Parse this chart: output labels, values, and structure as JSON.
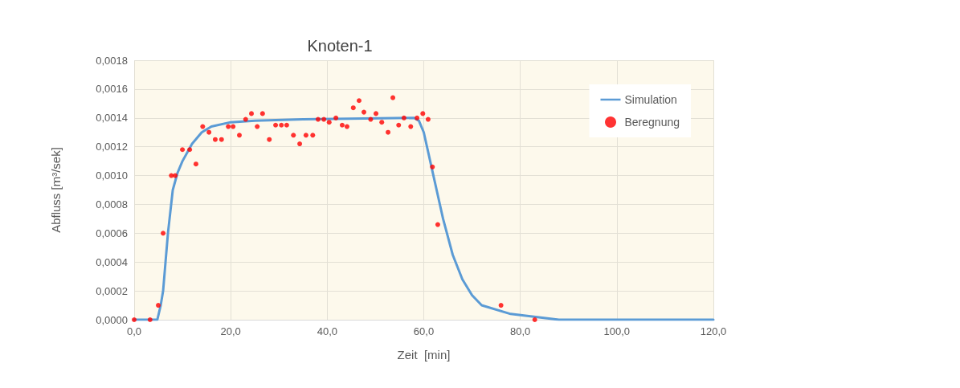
{
  "chart_data": {
    "type": "scatter",
    "title": "Knoten-1",
    "xlabel": "Zeit  [min]",
    "ylabel": "Abfluss [m³/sek]",
    "xlim": [
      0,
      120
    ],
    "xticks": [
      {
        "value": 0,
        "label": "0,0"
      },
      {
        "value": 20,
        "label": "20,0"
      },
      {
        "value": 40,
        "label": "40,0"
      },
      {
        "value": 60,
        "label": "60,0"
      },
      {
        "value": 80,
        "label": "80,0"
      },
      {
        "value": 100,
        "label": "100,0"
      },
      {
        "value": 120,
        "label": "120,0"
      }
    ],
    "ylim": [
      0,
      0.0018
    ],
    "yticks": [
      {
        "value": 0,
        "label": "0,0000"
      },
      {
        "value": 0.0002,
        "label": "0,0002"
      },
      {
        "value": 0.0004,
        "label": "0,0004"
      },
      {
        "value": 0.0006,
        "label": "0,0006"
      },
      {
        "value": 0.0008,
        "label": "0,0008"
      },
      {
        "value": 0.001,
        "label": "0,0010"
      },
      {
        "value": 0.0012,
        "label": "0,0012"
      },
      {
        "value": 0.0014,
        "label": "0,0014"
      },
      {
        "value": 0.0016,
        "label": "0,0016"
      },
      {
        "value": 0.0018,
        "label": "0,0018"
      }
    ],
    "grid": true,
    "legend": "top right",
    "series": [
      {
        "name": "Simulation",
        "type": "line",
        "color": "#5b9bd5",
        "marker": "none",
        "line_style": "solid",
        "x": [
          0,
          4.8,
          5.5,
          6,
          6.5,
          7,
          7.5,
          8,
          9,
          10,
          12,
          14,
          16,
          20,
          25,
          35,
          58,
          59,
          60,
          61,
          62,
          63,
          64,
          66,
          68,
          70,
          72,
          78,
          88,
          120
        ],
        "values": [
          0,
          0,
          0.0001,
          0.0002,
          0.0004,
          0.0006,
          0.00075,
          0.0009,
          0.00102,
          0.0011,
          0.00122,
          0.0013,
          0.00134,
          0.00137,
          0.00138,
          0.00139,
          0.0014,
          0.00138,
          0.0013,
          0.00115,
          0.001,
          0.00085,
          0.0007,
          0.00045,
          0.00028,
          0.00017,
          0.0001,
          4e-05,
          0,
          0
        ]
      },
      {
        "name": "Beregnung",
        "color": "#ff0000",
        "marker": "circle",
        "x": [
          0,
          3.3,
          5,
          6,
          7.7,
          8.5,
          10,
          11.5,
          12.8,
          14.2,
          15.5,
          16.8,
          18.1,
          19.5,
          20.5,
          21.8,
          23.1,
          24.3,
          25.5,
          26.6,
          28,
          29.3,
          30.5,
          31.6,
          33,
          34.3,
          35.6,
          37,
          38.1,
          39.3,
          40.4,
          41.8,
          43.1,
          44.1,
          45.4,
          46.6,
          47.6,
          49,
          50.1,
          51.3,
          52.6,
          53.6,
          54.8,
          55.9,
          57.3,
          58.6,
          59.8,
          60.9,
          61.8,
          62.9,
          76,
          83
        ],
        "values": [
          0,
          0,
          0.0001,
          0.0006,
          0.001,
          0.001,
          0.00118,
          0.00118,
          0.00108,
          0.00134,
          0.0013,
          0.00125,
          0.00125,
          0.00134,
          0.00134,
          0.00128,
          0.00139,
          0.00143,
          0.00134,
          0.00143,
          0.00125,
          0.00135,
          0.00135,
          0.00135,
          0.00128,
          0.00122,
          0.00128,
          0.00128,
          0.00139,
          0.00139,
          0.00137,
          0.0014,
          0.00135,
          0.00134,
          0.00147,
          0.00152,
          0.00144,
          0.00139,
          0.00143,
          0.00137,
          0.0013,
          0.00154,
          0.00135,
          0.0014,
          0.00134,
          0.0014,
          0.00143,
          0.00139,
          0.00106,
          0.00066,
          0.0001,
          0
        ]
      }
    ]
  }
}
